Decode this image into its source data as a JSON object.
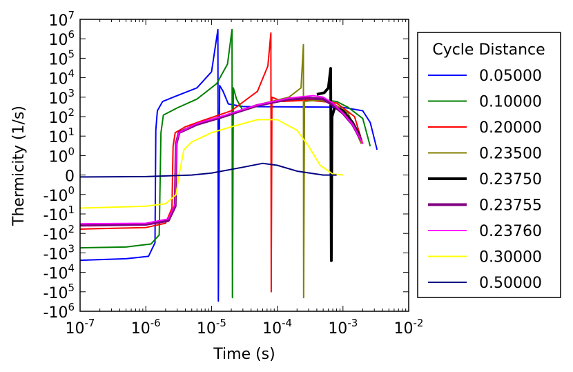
{
  "chart_data": {
    "type": "line",
    "title": "",
    "xlabel": "Time (s)",
    "ylabel": "Thermicity (1/s)",
    "xscale": "log",
    "yscale": "symlog",
    "xlim": [
      1e-07,
      0.01
    ],
    "ylim": [
      -1000000,
      10000000
    ],
    "grid": false,
    "x_ticks": [
      {
        "value": 1e-07,
        "base": "10",
        "exp": "-7"
      },
      {
        "value": 1e-06,
        "base": "10",
        "exp": "-6"
      },
      {
        "value": 1e-05,
        "base": "10",
        "exp": "-5"
      },
      {
        "value": 0.0001,
        "base": "10",
        "exp": "-4"
      },
      {
        "value": 0.001,
        "base": "10",
        "exp": "-3"
      },
      {
        "value": 0.01,
        "base": "10",
        "exp": "-2"
      }
    ],
    "y_ticks": [
      {
        "value": 10000000,
        "base": "10",
        "exp": "7"
      },
      {
        "value": 1000000,
        "base": "10",
        "exp": "6"
      },
      {
        "value": 100000,
        "base": "10",
        "exp": "5"
      },
      {
        "value": 10000,
        "base": "10",
        "exp": "4"
      },
      {
        "value": 1000,
        "base": "10",
        "exp": "3"
      },
      {
        "value": 100,
        "base": "10",
        "exp": "2"
      },
      {
        "value": 10,
        "base": "10",
        "exp": "1"
      },
      {
        "value": 1,
        "base": "10",
        "exp": "0"
      },
      {
        "value": 0,
        "base": "0",
        "exp": ""
      },
      {
        "value": -1,
        "base": "-10",
        "exp": "0"
      },
      {
        "value": -10,
        "base": "-10",
        "exp": "1"
      },
      {
        "value": -100,
        "base": "-10",
        "exp": "2"
      },
      {
        "value": -1000,
        "base": "-10",
        "exp": "3"
      },
      {
        "value": -10000,
        "base": "-10",
        "exp": "4"
      },
      {
        "value": -100000,
        "base": "-10",
        "exp": "5"
      },
      {
        "value": -1000000,
        "base": "-10",
        "exp": "6"
      }
    ],
    "legend": {
      "title": "Cycle Distance",
      "position": "outside-right"
    },
    "series": [
      {
        "name": "0.05000",
        "color": "#0000ff",
        "width": 2,
        "points": [
          [
            1e-07,
            -2400
          ],
          [
            5e-07,
            -2000
          ],
          [
            1.1e-06,
            -1500
          ],
          [
            1.38e-06,
            -300
          ],
          [
            1.42e-06,
            20
          ],
          [
            1.5e-06,
            200
          ],
          [
            1.8e-06,
            600
          ],
          [
            3e-06,
            1200
          ],
          [
            6e-06,
            3000
          ],
          [
            1e-05,
            20000
          ],
          [
            1.25e-05,
            3000000
          ],
          [
            1.27e-05,
            -300000
          ],
          [
            1.33e-05,
            4000
          ],
          [
            1.5e-05,
            2000
          ],
          [
            1.8e-05,
            450
          ],
          [
            3e-05,
            330
          ],
          [
            0.0001,
            320
          ],
          [
            0.0005,
            310
          ],
          [
            0.001,
            300
          ],
          [
            0.002,
            200
          ],
          [
            0.0026,
            50
          ],
          [
            0.0033,
            2
          ]
        ]
      },
      {
        "name": "0.10000",
        "color": "#008000",
        "width": 2,
        "points": [
          [
            1e-07,
            -550
          ],
          [
            5e-07,
            -500
          ],
          [
            1.2e-06,
            -350
          ],
          [
            1.6e-06,
            -120
          ],
          [
            1.7e-06,
            15
          ],
          [
            1.85e-06,
            120
          ],
          [
            3e-06,
            280
          ],
          [
            6e-06,
            800
          ],
          [
            1.2e-05,
            5000
          ],
          [
            1.75e-05,
            50000
          ],
          [
            2.05e-05,
            3000000
          ],
          [
            2.08e-05,
            -200000
          ],
          [
            2.15e-05,
            3000
          ],
          [
            2.4e-05,
            800
          ],
          [
            3e-05,
            200
          ],
          [
            6e-05,
            420
          ],
          [
            0.0001,
            650
          ],
          [
            0.0004,
            800
          ],
          [
            0.0008,
            600
          ],
          [
            0.0012,
            300
          ],
          [
            0.002,
            80
          ],
          [
            0.0026,
            3
          ]
        ]
      },
      {
        "name": "0.20000",
        "color": "#ff0000",
        "width": 2,
        "points": [
          [
            1e-07,
            -60
          ],
          [
            1e-06,
            -50
          ],
          [
            2e-06,
            -30
          ],
          [
            2.5e-06,
            -5
          ],
          [
            2.6e-06,
            3
          ],
          [
            2.8e-06,
            15
          ],
          [
            4e-06,
            30
          ],
          [
            7e-06,
            60
          ],
          [
            2e-05,
            200
          ],
          [
            5e-05,
            2000
          ],
          [
            7.2e-05,
            40000
          ],
          [
            8e-05,
            2000000
          ],
          [
            8.1e-05,
            -100000
          ],
          [
            8.3e-05,
            1000
          ],
          [
            0.00012,
            600
          ],
          [
            0.0003,
            700
          ],
          [
            0.0008,
            500
          ],
          [
            0.0015,
            100
          ],
          [
            0.002,
            4
          ]
        ]
      },
      {
        "name": "0.23500",
        "color": "#808000",
        "width": 2,
        "points": [
          [
            1e-07,
            -40
          ],
          [
            1e-06,
            -35
          ],
          [
            2.2e-06,
            -20
          ],
          [
            2.8e-06,
            -4
          ],
          [
            2.9e-06,
            3
          ],
          [
            3.2e-06,
            15
          ],
          [
            6e-06,
            40
          ],
          [
            1.5e-05,
            100
          ],
          [
            5e-05,
            400
          ],
          [
            0.00015,
            1000
          ],
          [
            0.00023,
            3000
          ],
          [
            0.00025,
            500000
          ],
          [
            0.000252,
            -200000
          ],
          [
            0.00026,
            600
          ],
          [
            0.0004,
            700
          ],
          [
            0.0007,
            500
          ],
          [
            0.0012,
            150
          ],
          [
            0.0019,
            4
          ]
        ]
      },
      {
        "name": "0.23750",
        "color": "#000000",
        "width": 4,
        "points": [
          [
            0.0004,
            1400
          ],
          [
            0.00052,
            1700
          ],
          [
            0.0006,
            3000
          ],
          [
            0.00065,
            30000
          ],
          [
            0.000665,
            -2500
          ],
          [
            0.00068,
            100
          ],
          [
            0.00075,
            300
          ],
          [
            0.001,
            200
          ],
          [
            0.0014,
            50
          ],
          [
            0.0018,
            10
          ]
        ]
      },
      {
        "name": "0.23755",
        "color": "#800080",
        "width": 4,
        "points": [
          [
            1e-07,
            -38
          ],
          [
            1e-06,
            -34
          ],
          [
            2.2e-06,
            -22
          ],
          [
            2.8e-06,
            -4
          ],
          [
            2.9e-06,
            4
          ],
          [
            3.2e-06,
            15
          ],
          [
            6e-06,
            40
          ],
          [
            1.5e-05,
            100
          ],
          [
            5e-05,
            380
          ],
          [
            0.00015,
            800
          ],
          [
            0.0003,
            900
          ],
          [
            0.0005,
            800
          ],
          [
            0.0007,
            400
          ],
          [
            0.001,
            150
          ],
          [
            0.0014,
            40
          ],
          [
            0.0019,
            6
          ]
        ]
      },
      {
        "name": "0.23760",
        "color": "#ff00ff",
        "width": 2,
        "points": [
          [
            1e-07,
            -32
          ],
          [
            1e-06,
            -30
          ],
          [
            2.2e-06,
            -18
          ],
          [
            2.8e-06,
            -3
          ],
          [
            2.9e-06,
            4
          ],
          [
            3.2e-06,
            15
          ],
          [
            6e-06,
            45
          ],
          [
            1.5e-05,
            110
          ],
          [
            5e-05,
            400
          ],
          [
            0.00015,
            900
          ],
          [
            0.00035,
            1200
          ],
          [
            0.0005,
            1000
          ],
          [
            0.0007,
            500
          ],
          [
            0.001,
            150
          ],
          [
            0.0014,
            40
          ],
          [
            0.002,
            4
          ]
        ]
      },
      {
        "name": "0.30000",
        "color": "#ffff00",
        "width": 2,
        "points": [
          [
            1e-07,
            -5
          ],
          [
            1e-06,
            -4
          ],
          [
            2e-06,
            -3
          ],
          [
            2.9e-06,
            -1
          ],
          [
            3.2e-06,
            0
          ],
          [
            3.8e-06,
            2
          ],
          [
            5e-06,
            5
          ],
          [
            1e-05,
            15
          ],
          [
            2e-05,
            30
          ],
          [
            5e-05,
            70
          ],
          [
            0.0001,
            70
          ],
          [
            0.0002,
            20
          ],
          [
            0.0003,
            3
          ],
          [
            0.00045,
            0.5
          ],
          [
            0.0007,
            0.05
          ],
          [
            0.001,
            0
          ]
        ]
      },
      {
        "name": "0.50000",
        "color": "#000080",
        "width": 2,
        "points": [
          [
            1e-07,
            -0.1
          ],
          [
            1e-06,
            -0.08
          ],
          [
            5e-06,
            0
          ],
          [
            1e-05,
            0.1
          ],
          [
            3e-05,
            0.4
          ],
          [
            6e-05,
            0.6
          ],
          [
            0.0001,
            0.5
          ],
          [
            0.0002,
            0.2
          ],
          [
            0.0005,
            0
          ],
          [
            0.0008,
            0
          ]
        ]
      }
    ]
  }
}
